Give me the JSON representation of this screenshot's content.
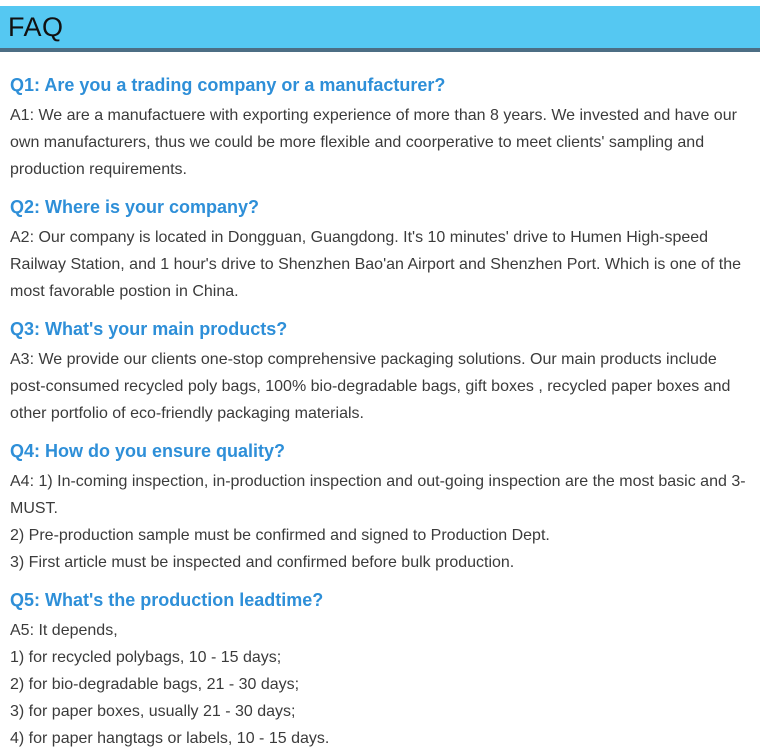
{
  "header": {
    "title": "FAQ"
  },
  "colors": {
    "page_bg": "#ffffff",
    "header_bg": "#55C8F2",
    "header_border": "#4C6E84",
    "header_text": "#111111",
    "question": "#2E8FD8",
    "body_text": "#3B3B3B"
  },
  "faq": {
    "items": [
      {
        "question": "Q1: Are you a trading company or a manufacturer?",
        "answer_lines": [
          "A1: We are a manufactuere with exporting experience of more than 8 years. We invested and have our own manufacturers, thus we could be more flexible and coorperative to meet clients' sampling and production requirements."
        ]
      },
      {
        "question": "Q2: Where is your company?",
        "answer_lines": [
          "A2: Our company is located in Dongguan, Guangdong. It's 10 minutes' drive to Humen High-speed Railway Station, and 1 hour's drive to Shenzhen Bao'an Airport and Shenzhen Port. Which is one of the most favorable postion in China."
        ]
      },
      {
        "question": "Q3: What's your main products?",
        "answer_lines": [
          "A3: We provide our clients one-stop comprehensive packaging solutions. Our main products include post-consumed recycled poly bags, 100% bio-degradable bags, gift boxes , recycled paper boxes and other portfolio of eco-friendly packaging materials."
        ]
      },
      {
        "question": "Q4: How do you ensure quality?",
        "answer_lines": [
          "A4: 1) In-coming inspection, in-production inspection and out-going inspection are the most basic and 3-MUST.",
          "2) Pre-production sample must be confirmed and signed to Production Dept.",
          "3) First article must be inspected and confirmed before bulk production."
        ]
      },
      {
        "question": "Q5: What's the production leadtime?",
        "answer_lines": [
          "A5: It depends,",
          "1) for recycled polybags, 10 - 15 days;",
          "2) for bio-degradable bags, 21 - 30 days;",
          "3) for paper boxes, usually 21 - 30 days;",
          "4) for paper hangtags or labels, 10 - 15 days."
        ]
      }
    ]
  }
}
